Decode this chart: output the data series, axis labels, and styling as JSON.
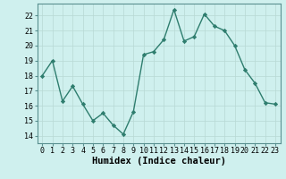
{
  "x": [
    0,
    1,
    2,
    3,
    4,
    5,
    6,
    7,
    8,
    9,
    10,
    11,
    12,
    13,
    14,
    15,
    16,
    17,
    18,
    19,
    20,
    21,
    22,
    23
  ],
  "y": [
    18.0,
    19.0,
    16.3,
    17.3,
    16.1,
    15.0,
    15.5,
    14.7,
    14.1,
    15.6,
    19.4,
    19.6,
    20.4,
    22.4,
    20.3,
    20.6,
    22.1,
    21.3,
    21.0,
    20.0,
    18.4,
    17.5,
    16.2,
    16.1
  ],
  "line_color": "#2e7d6e",
  "marker": "D",
  "markersize": 2.2,
  "linewidth": 1.0,
  "bg_color": "#cff0ee",
  "grid_color": "#b8d8d4",
  "xlabel": "Humidex (Indice chaleur)",
  "ylim": [
    13.5,
    22.8
  ],
  "yticks": [
    14,
    15,
    16,
    17,
    18,
    19,
    20,
    21,
    22
  ],
  "xticks": [
    0,
    1,
    2,
    3,
    4,
    5,
    6,
    7,
    8,
    9,
    10,
    11,
    12,
    13,
    14,
    15,
    16,
    17,
    18,
    19,
    20,
    21,
    22,
    23
  ],
  "tick_fontsize": 6.0,
  "xlabel_fontsize": 7.5
}
